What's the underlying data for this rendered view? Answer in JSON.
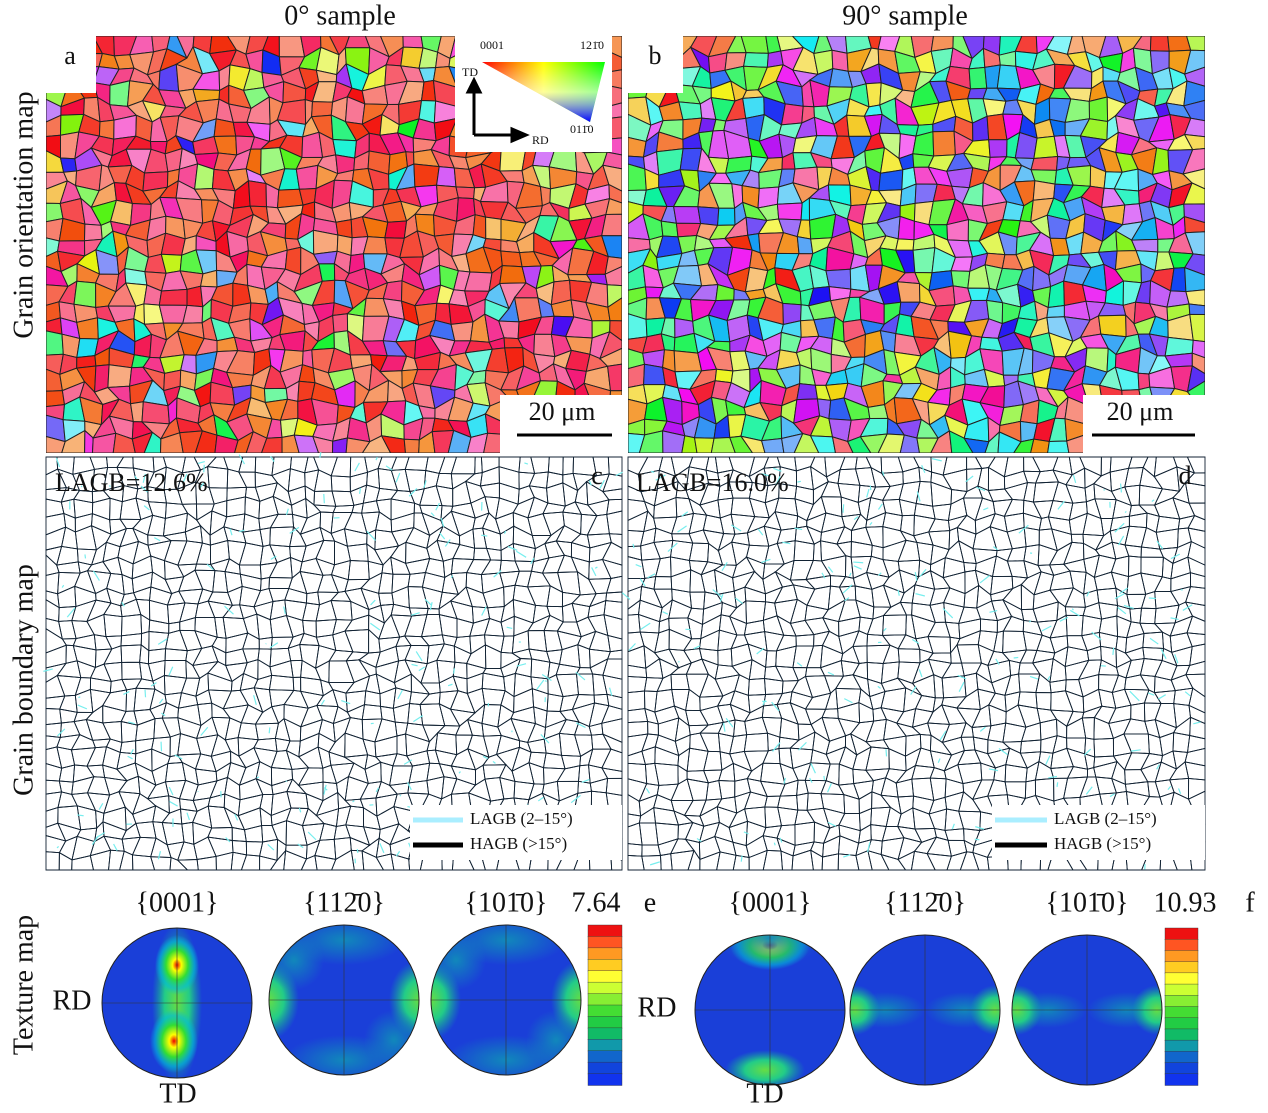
{
  "column_titles": [
    "0° sample",
    "90° sample"
  ],
  "row_titles": [
    "Grain orientation map",
    "Grain boundary map",
    "Texture map"
  ],
  "orientation_maps": [
    {
      "panel": "a",
      "scale_bar": "20 μm"
    },
    {
      "panel": "b",
      "scale_bar": "20 μm"
    }
  ],
  "ipf_key": {
    "corners": [
      "0001",
      "121̄0",
      "011̄0"
    ],
    "axes": [
      "TD",
      "RD"
    ]
  },
  "boundary_maps": [
    {
      "panel": "c",
      "lagb_fraction": "LAGB=12.6%",
      "legend": [
        "LAGB (2–15°)",
        "HAGB (>15°)"
      ]
    },
    {
      "panel": "d",
      "lagb_fraction": "LAGB=16.0%",
      "legend": [
        "LAGB (2–15°)",
        "HAGB (>15°)"
      ]
    }
  ],
  "texture_maps": [
    {
      "panel": "e",
      "pole_figures": [
        "{0001}",
        "{112̄0}",
        "{101̄0}"
      ],
      "max": "7.64",
      "axes": [
        "RD",
        "TD"
      ]
    },
    {
      "panel": "f",
      "pole_figures": [
        "{0001}",
        "{112̄0}",
        "{101̄0}"
      ],
      "max": "10.93",
      "axes": [
        "RD",
        "TD"
      ]
    }
  ]
}
